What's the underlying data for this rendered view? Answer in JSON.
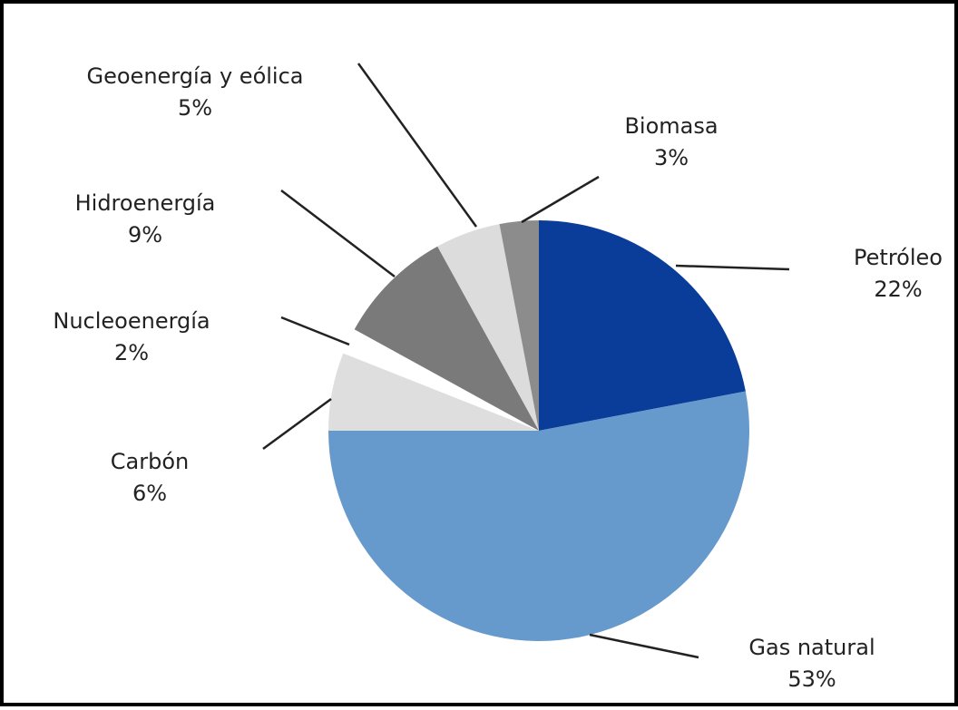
{
  "chart_data": {
    "type": "pie",
    "categories": [
      "Petróleo",
      "Gas natural",
      "Carbón",
      "Nucleoenergía",
      "Hidroenergía",
      "Geoenergía y eólica",
      "Biomasa"
    ],
    "values": [
      22,
      53,
      6,
      2,
      9,
      5,
      3
    ],
    "value_labels": [
      "22%",
      "53%",
      "6%",
      "2%",
      "9%",
      "5%",
      "3%"
    ],
    "colors": [
      "#0a3d9a",
      "#6699cc",
      "#dedede",
      "#ffffff",
      "#7a7a7a",
      "#dcdcdc",
      "#8c8c8c"
    ]
  }
}
